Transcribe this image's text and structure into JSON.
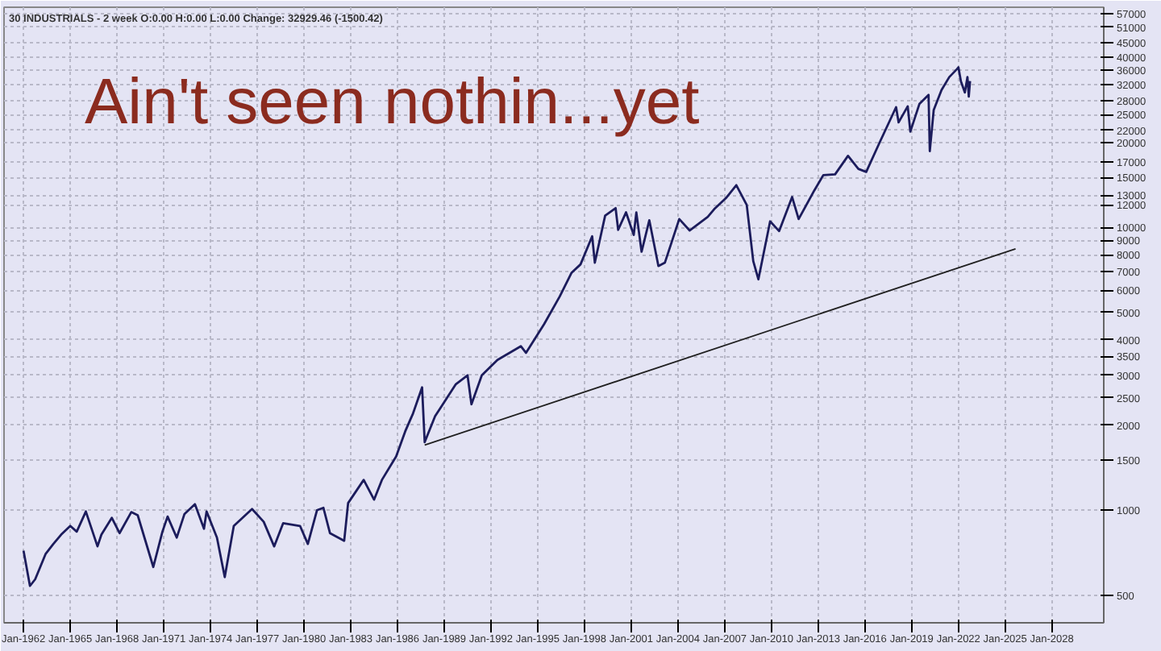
{
  "chart_data": {
    "type": "line",
    "title": "Ain't seen nothin...yet",
    "subtitle": "30 INDUSTRIALS - 2 week   O:0.00  H:0.00  L:0.00  Change: 32929.46 (-1500.42)",
    "log": "y",
    "grid": true,
    "marker": "none",
    "line_style": "solid",
    "xlim": [
      "1960-10",
      "2031-05"
    ],
    "xticks": [
      {
        "value": "1962-01",
        "label": "Jan-1962"
      },
      {
        "value": "1965-01",
        "label": "Jan-1965"
      },
      {
        "value": "1968-01",
        "label": "Jan-1968"
      },
      {
        "value": "1971-01",
        "label": "Jan-1971"
      },
      {
        "value": "1974-01",
        "label": "Jan-1974"
      },
      {
        "value": "1977-01",
        "label": "Jan-1977"
      },
      {
        "value": "1980-01",
        "label": "Jan-1980"
      },
      {
        "value": "1983-01",
        "label": "Jan-1983"
      },
      {
        "value": "1986-01",
        "label": "Jan-1986"
      },
      {
        "value": "1989-01",
        "label": "Jan-1989"
      },
      {
        "value": "1992-01",
        "label": "Jan-1992"
      },
      {
        "value": "1995-01",
        "label": "Jan-1995"
      },
      {
        "value": "1998-01",
        "label": "Jan-1998"
      },
      {
        "value": "2001-01",
        "label": "Jan-2001"
      },
      {
        "value": "2004-01",
        "label": "Jan-2004"
      },
      {
        "value": "2007-01",
        "label": "Jan-2007"
      },
      {
        "value": "2010-01",
        "label": "Jan-2010"
      },
      {
        "value": "2013-01",
        "label": "Jan-2013"
      },
      {
        "value": "2016-01",
        "label": "Jan-2016"
      },
      {
        "value": "2019-01",
        "label": "Jan-2019"
      },
      {
        "value": "2022-01",
        "label": "Jan-2022"
      },
      {
        "value": "2025-01",
        "label": "Jan-2025"
      },
      {
        "value": "2028-01",
        "label": "Jan-2028"
      }
    ],
    "ylim": [
      400,
      60000
    ],
    "yticks": [
      500,
      1000,
      1500,
      2000,
      2500,
      3000,
      3500,
      4000,
      5000,
      6000,
      7000,
      8000,
      9000,
      10000,
      12000,
      13000,
      15000,
      17000,
      20000,
      22000,
      25000,
      28000,
      32000,
      36000,
      40000,
      45000,
      51000,
      57000
    ],
    "series": [
      {
        "color": "#1c1c5c",
        "x": [
          "1962-01",
          "1962-06",
          "1962-10",
          "1963-06",
          "1963-12",
          "1964-06",
          "1965-01",
          "1965-06",
          "1966-01",
          "1966-10",
          "1967-01",
          "1967-09",
          "1968-03",
          "1968-12",
          "1969-05",
          "1970-05",
          "1970-12",
          "1971-04",
          "1971-11",
          "1972-05",
          "1973-01",
          "1973-08",
          "1973-10",
          "1974-06",
          "1974-12",
          "1975-07",
          "1976-09",
          "1977-06",
          "1978-02",
          "1978-09",
          "1979-10",
          "1980-04",
          "1980-11",
          "1981-04",
          "1981-09",
          "1982-08",
          "1982-11",
          "1983-11",
          "1984-07",
          "1985-01",
          "1985-12",
          "1986-07",
          "1987-01",
          "1987-08",
          "1987-10",
          "1988-06",
          "1989-10",
          "1990-07",
          "1990-10",
          "1991-06",
          "1992-06",
          "1993-12",
          "1994-04",
          "1995-06",
          "1996-06",
          "1997-03",
          "1997-10",
          "1998-07",
          "1998-09",
          "1999-05",
          "2000-01",
          "2000-03",
          "2000-09",
          "2001-03",
          "2001-05",
          "2001-09",
          "2002-03",
          "2002-10",
          "2003-03",
          "2004-02",
          "2004-10",
          "2005-12",
          "2006-05",
          "2007-02",
          "2007-10",
          "2008-06",
          "2008-11",
          "2009-03",
          "2009-12",
          "2010-07",
          "2011-05",
          "2011-10",
          "2012-10",
          "2013-05",
          "2014-02",
          "2014-12",
          "2015-08",
          "2016-02",
          "2016-12",
          "2018-01",
          "2018-03",
          "2018-10",
          "2018-12",
          "2019-07",
          "2020-02",
          "2020-03",
          "2020-06",
          "2020-12",
          "2021-06",
          "2021-12",
          "2022-01",
          "2022-03",
          "2022-06",
          "2022-08",
          "2022-09",
          "2022-10"
        ],
        "values": [
          720,
          540,
          570,
          700,
          760,
          820,
          880,
          840,
          990,
          745,
          820,
          940,
          830,
          985,
          960,
          630,
          840,
          950,
          800,
          970,
          1050,
          860,
          990,
          800,
          580,
          880,
          1010,
          910,
          745,
          900,
          880,
          760,
          1000,
          1020,
          830,
          780,
          1060,
          1280,
          1090,
          1280,
          1550,
          1900,
          2200,
          2720,
          1740,
          2150,
          2790,
          3000,
          2370,
          3000,
          3400,
          3800,
          3600,
          4550,
          5700,
          6900,
          7400,
          9300,
          7500,
          11000,
          11700,
          9800,
          11300,
          9400,
          11300,
          8200,
          10600,
          7300,
          7500,
          10700,
          9750,
          10900,
          11600,
          12700,
          14100,
          12000,
          7600,
          6550,
          10500,
          9700,
          12800,
          10700,
          13500,
          15300,
          15400,
          17900,
          16100,
          15700,
          19800,
          26600,
          23500,
          26800,
          21800,
          27300,
          29400,
          18600,
          26000,
          30600,
          34000,
          36300,
          36800,
          32800,
          30000,
          34000,
          29000,
          32900
        ]
      },
      {
        "color": "#202020",
        "x": [
          "1987-10",
          "2025-09"
        ],
        "values": [
          1700,
          8400
        ]
      }
    ]
  }
}
